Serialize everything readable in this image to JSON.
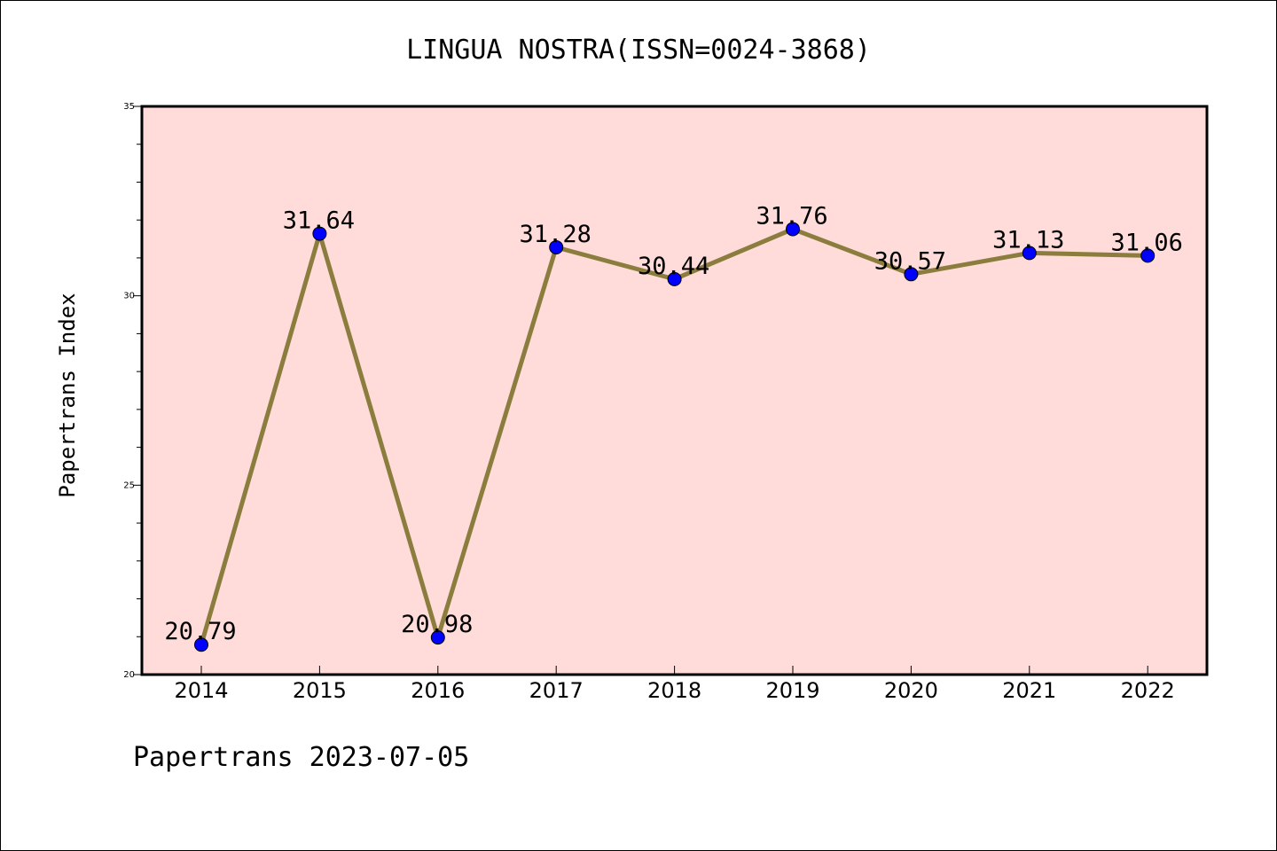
{
  "chart_data": {
    "type": "line",
    "title": "LINGUA NOSTRA(ISSN=0024-3868)",
    "xlabel": "",
    "ylabel": "Papertrans Index",
    "categories": [
      "2014",
      "2015",
      "2016",
      "2017",
      "2018",
      "2019",
      "2020",
      "2021",
      "2022"
    ],
    "series": [
      {
        "values": [
          20.79,
          31.64,
          20.98,
          31.28,
          30.44,
          31.76,
          30.57,
          31.13,
          31.06
        ],
        "labels": [
          "20.79",
          "31.64",
          "20.98",
          "31.28",
          "30.44",
          "31.76",
          "30.57",
          "31.13",
          "31.06"
        ]
      }
    ],
    "ylim": [
      20,
      35
    ],
    "y_ticks": [
      "20",
      "25",
      "30",
      "35"
    ],
    "grid": false,
    "legend": "none",
    "colors": {
      "plot_background": "#FFDCDA",
      "line": "#8B7D3E",
      "marker": "#0000FF"
    }
  },
  "footer": {
    "text": "Papertrans 2023-07-05"
  }
}
